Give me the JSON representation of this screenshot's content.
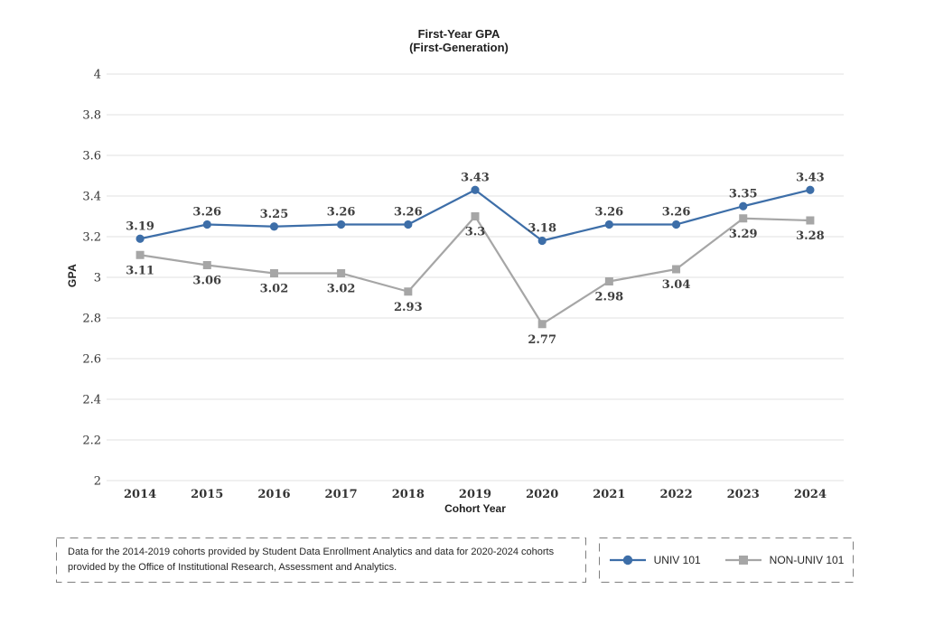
{
  "chart_data": {
    "type": "line",
    "title": "First-Year GPA",
    "subtitle": "(First-Generation)",
    "xlabel": "Cohort Year",
    "ylabel": "GPA",
    "categories": [
      "2014",
      "2015",
      "2016",
      "2017",
      "2018",
      "2019",
      "2020",
      "2021",
      "2022",
      "2023",
      "2024"
    ],
    "series": [
      {
        "name": "UNIV 101",
        "color": "#3D6EA8",
        "marker": "circle",
        "label_position": "above",
        "values": [
          3.19,
          3.26,
          3.25,
          3.26,
          3.26,
          3.43,
          3.18,
          3.26,
          3.26,
          3.35,
          3.43
        ],
        "labels": [
          "3.19",
          "3.26",
          "3.25",
          "3.26",
          "3.26",
          "3.43",
          "3.18",
          "3.26",
          "3.26",
          "3.35",
          "3.43"
        ]
      },
      {
        "name": "NON-UNIV 101",
        "color": "#A6A6A6",
        "marker": "square",
        "label_position": "below",
        "values": [
          3.11,
          3.06,
          3.02,
          3.02,
          2.93,
          3.3,
          2.77,
          2.98,
          3.04,
          3.29,
          3.28
        ],
        "labels": [
          "3.11",
          "3.06",
          "3.02",
          "3.02",
          "2.93",
          "3.3",
          "2.77",
          "2.98",
          "3.04",
          "3.29",
          "3.28"
        ]
      }
    ],
    "ylim": [
      2,
      4
    ],
    "ytick_step": 0.2,
    "ytick_labels": [
      "4",
      "3.8",
      "3.6",
      "3.4",
      "3.2",
      "3",
      "2.8",
      "2.6",
      "2.4",
      "2.2",
      "2"
    ],
    "grid": "horizontal",
    "legend_position": "bottom-right"
  },
  "footnote": {
    "line1": "Data for the 2014-2019 cohorts provided by Student Data Enrollment Analytics and data for 2020-2024 cohorts",
    "line2": "provided by the Office of Institutional Research, Assessment and Analytics."
  },
  "colors": {
    "grid": "#E0E0E0",
    "tick_label": "#333333",
    "data_label": "#3F3F3F",
    "box_border": "#7F7F7F",
    "title_text": "#1F1F1F"
  }
}
